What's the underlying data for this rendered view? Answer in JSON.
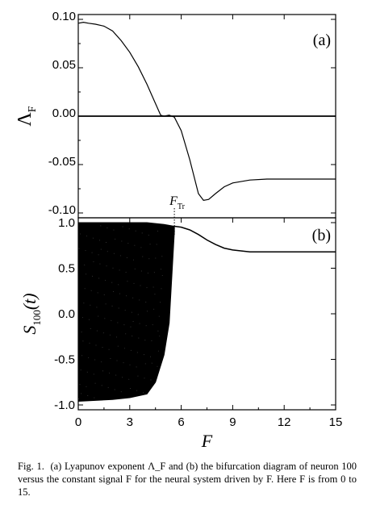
{
  "chart_data": [
    {
      "type": "line",
      "panel_label": "(a)",
      "ylabel": {
        "symbol": "Λ",
        "subscript": "F"
      },
      "xlim": [
        0,
        15
      ],
      "ylim": [
        -0.1,
        0.1
      ],
      "yticks": [
        0.1,
        0.05,
        0.0,
        -0.05,
        -0.1
      ],
      "ytick_labels": [
        "0.10",
        "0.05",
        "0.00",
        "-0.05",
        "-0.10"
      ],
      "reference_line_y": 0.0,
      "series": [
        {
          "x": [
            0,
            0.3,
            0.6,
            1.0,
            1.5,
            2.0,
            2.5,
            3.0,
            3.5,
            4.0,
            4.4,
            4.8,
            5.0,
            5.3,
            5.6,
            6.0,
            6.5,
            7.0,
            7.3,
            7.6,
            8.0,
            8.5,
            9.0,
            10.0,
            11.0,
            12.0,
            13.0,
            14.0,
            15.0
          ],
          "y": [
            0.096,
            0.097,
            0.096,
            0.095,
            0.093,
            0.088,
            0.078,
            0.066,
            0.051,
            0.033,
            0.017,
            0.001,
            0.0,
            0.001,
            -0.001,
            -0.015,
            -0.045,
            -0.08,
            -0.087,
            -0.086,
            -0.08,
            -0.073,
            -0.069,
            -0.066,
            -0.065,
            -0.065,
            -0.065,
            -0.065,
            -0.065
          ]
        }
      ]
    },
    {
      "type": "scatter",
      "panel_label": "(b)",
      "ylabel": {
        "symbol": "S",
        "subscript": "100",
        "suffix": "(t)"
      },
      "xlabel": "F",
      "xlim": [
        0,
        15
      ],
      "ylim": [
        -1.0,
        1.0
      ],
      "xticks": [
        0,
        3,
        6,
        9,
        12,
        15
      ],
      "xtick_labels": [
        "0",
        "3",
        "6",
        "9",
        "12",
        "15"
      ],
      "yticks": [
        1.0,
        0.5,
        0.0,
        -0.5,
        -1.0
      ],
      "ytick_labels": [
        "1.0",
        "0.5",
        "0.0",
        "-0.5",
        "-1.0"
      ],
      "chaotic_band": {
        "x": [
          0,
          1,
          2,
          3,
          4,
          4.5,
          5.0,
          5.3,
          5.6
        ],
        "upper": [
          1.0,
          1.0,
          1.0,
          1.0,
          1.0,
          0.99,
          0.98,
          0.97,
          0.96
        ],
        "lower": [
          -0.96,
          -0.95,
          -0.94,
          -0.92,
          -0.88,
          -0.75,
          -0.45,
          -0.1,
          0.9
        ]
      },
      "fixed_branch": {
        "x": [
          5.6,
          6.0,
          6.5,
          7.0,
          7.5,
          8.0,
          8.5,
          9.0,
          10.0,
          11.0,
          12.0,
          13.0,
          14.0,
          15.0
        ],
        "y": [
          0.96,
          0.95,
          0.92,
          0.87,
          0.81,
          0.76,
          0.72,
          0.7,
          0.68,
          0.68,
          0.68,
          0.68,
          0.68,
          0.68
        ]
      },
      "annotation": {
        "symbol": "F",
        "subscript": "Tr",
        "x": 5.6
      }
    }
  ],
  "caption": {
    "number": "Fig. 1.",
    "text": "(a) Lyapunov exponent Λ_F and (b) the bifurcation diagram of neuron 100 versus the constant signal F for the neural system driven by F. Here F is from 0 to 15."
  }
}
